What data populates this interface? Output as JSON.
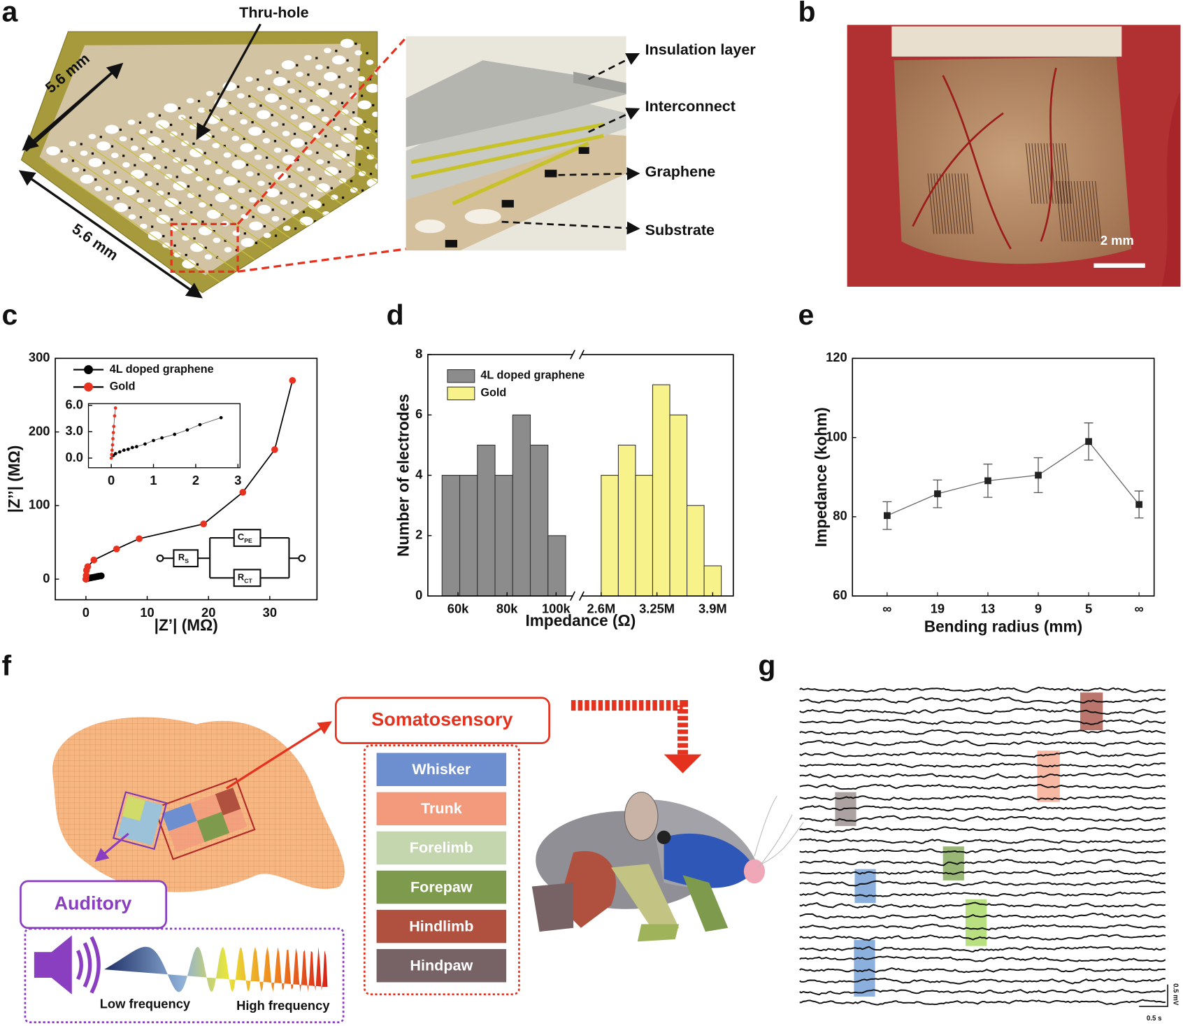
{
  "panel_labels": [
    "a",
    "b",
    "c",
    "d",
    "e",
    "f",
    "g"
  ],
  "panel_a": {
    "thru_hole": "Thru-hole",
    "dim_top": "5.6 mm",
    "dim_bottom": "5.6 mm",
    "layers": [
      "Insulation layer",
      "Interconnect",
      "Graphene",
      "Substrate"
    ]
  },
  "panel_b": {
    "scale_bar": "2 mm"
  },
  "chart_data": [
    {
      "type": "scatter",
      "xlabel": "|Z’| (MΩ)",
      "ylabel": "|Z’’| (MΩ)",
      "xlim": [
        -5,
        37.7
      ],
      "ylim": [
        -28,
        300
      ],
      "xticks": [
        0,
        10,
        20,
        30
      ],
      "yticks": [
        0,
        100,
        200,
        300
      ],
      "series": [
        {
          "name": "4L doped graphene",
          "color": "#000000",
          "line_color": "#000000",
          "x": [
            0,
            0.3,
            0.6,
            0.9,
            1.2,
            1.5,
            1.8,
            2.1,
            2.5
          ],
          "values": [
            0,
            1,
            1.5,
            2,
            2.5,
            3,
            3.5,
            4,
            4.5
          ]
        },
        {
          "name": "Gold",
          "color": "#e8311f",
          "line_color": "#000000",
          "x": [
            0,
            0.05,
            0.1,
            0.3,
            1.3,
            5,
            8.7,
            19.2,
            25.6,
            30.8,
            33.7
          ],
          "values": [
            0,
            5,
            12,
            17,
            26,
            41,
            55,
            75,
            118,
            176,
            270
          ]
        }
      ],
      "inset": {
        "xlim": [
          -0.54,
          3.05
        ],
        "ylim": [
          -1.1,
          6.2
        ],
        "xticks": [
          0,
          1,
          2,
          3
        ],
        "yticks": [
          {
            "value": 0,
            "label": "0.0"
          },
          {
            "value": 3,
            "label": "3.0"
          },
          {
            "value": 6,
            "label": "6.0"
          }
        ],
        "series": [
          {
            "x": [
              0.05,
              0.1,
              0.2,
              0.3,
              0.4,
              0.5,
              0.6,
              0.8,
              1.0,
              1.2,
              1.5,
              1.8,
              2.1,
              2.6
            ],
            "values": [
              0.3,
              0.5,
              0.7,
              0.9,
              1.0,
              1.2,
              1.3,
              1.6,
              2.0,
              2.3,
              2.7,
              3.2,
              3.8,
              4.6
            ]
          },
          {
            "x": [
              0,
              0.01,
              0.02,
              0.03,
              0.04,
              0.05,
              0.06,
              0.08,
              0.1
            ],
            "values": [
              0,
              0.4,
              0.9,
              1.5,
              2.2,
              2.9,
              3.6,
              4.8,
              5.7
            ]
          }
        ]
      },
      "circuit": [
        {
          "main": "R",
          "sub": "S"
        },
        {
          "main": "C",
          "sub": "PE"
        },
        {
          "main": "R",
          "sub": "CT"
        }
      ]
    },
    {
      "type": "histogram",
      "xlabel": "Impedance (Ω)",
      "ylabel": "Number of electrodes",
      "ylim": [
        0,
        8
      ],
      "yticks": [
        0,
        2,
        4,
        6,
        8
      ],
      "series": [
        {
          "name": "4L doped graphene",
          "color": "#8c8c8c",
          "bins": [
            53500,
            60700,
            67900,
            75100,
            82300,
            89500,
            96700,
            103900
          ],
          "counts": [
            4,
            4,
            5,
            4,
            6,
            5,
            2
          ],
          "xlim": [
            47700,
            108600
          ],
          "xticks": [
            {
              "value": 60000,
              "label": "60k"
            },
            {
              "value": 80000,
              "label": "80k"
            },
            {
              "value": 100000,
              "label": "100k"
            }
          ]
        },
        {
          "name": "Gold",
          "color": "#f7f28a",
          "bins": [
            2600000,
            2800000,
            3000000,
            3200000,
            3400000,
            3600000,
            3800000,
            4000000
          ],
          "counts": [
            4,
            5,
            4,
            7,
            6,
            3,
            1
          ],
          "xlim": [
            2320000,
            4140000
          ],
          "xticks": [
            {
              "value": 2600000,
              "label": "2.6M"
            },
            {
              "value": 3250000,
              "label": "3.25M"
            },
            {
              "value": 3900000,
              "label": "3.9M"
            }
          ]
        }
      ]
    },
    {
      "type": "line",
      "xlabel": "Bending radius (mm)",
      "ylabel": "Impedance (kohm)",
      "categories": [
        "∞",
        "19",
        "13",
        "9",
        "5",
        "∞"
      ],
      "values": [
        80.3,
        85.8,
        89.1,
        90.5,
        99,
        83.1
      ],
      "errors": [
        3.5,
        3.5,
        4.2,
        4.4,
        4.7,
        3.4
      ],
      "color": "#222222",
      "ylim": [
        60,
        120
      ],
      "yticks": [
        60,
        80,
        100,
        120
      ]
    }
  ],
  "panel_f": {
    "somatosensory": "Somatosensory",
    "auditory": "Auditory",
    "regions": [
      {
        "name": "Whisker",
        "color": "#6e8fcf"
      },
      {
        "name": "Trunk",
        "color": "#f39a7d"
      },
      {
        "name": "Forelimb",
        "color": "#c3d6ad"
      },
      {
        "name": "Forepaw",
        "color": "#7e9a4c"
      },
      {
        "name": "Hindlimb",
        "color": "#b0503f"
      },
      {
        "name": "Hindpaw",
        "color": "#776265"
      }
    ],
    "low_frequency": "Low frequency",
    "high_frequency": "High frequency"
  },
  "panel_g": {
    "time_scale": "0.5 s",
    "voltage_scale": "0.5 mV"
  }
}
